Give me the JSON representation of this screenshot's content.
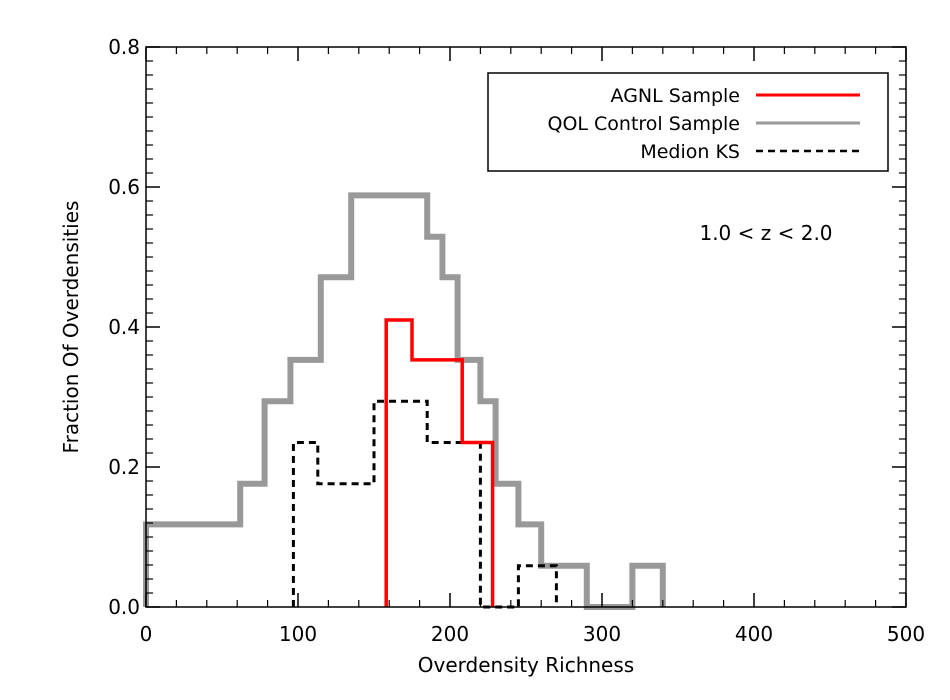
{
  "chart_data": {
    "type": "histogram",
    "title": "",
    "xlabel": "Overdensity Richness",
    "ylabel": "Fraction Of Overdensities",
    "xlim": [
      0,
      500
    ],
    "ylim": [
      0,
      0.8
    ],
    "x_ticks": [
      0,
      100,
      200,
      300,
      400,
      500
    ],
    "x_tick_labels": [
      "0",
      "100",
      "200",
      "300",
      "400",
      "500"
    ],
    "y_ticks": [
      0.0,
      0.2,
      0.4,
      0.6,
      0.8
    ],
    "y_tick_labels": [
      "0.0",
      "0.2",
      "0.4",
      "0.6",
      "0.8"
    ],
    "annotation": "1.0 < z < 2.0",
    "legend_position": "top-right",
    "series": [
      {
        "name": "AGNL Sample",
        "color": "#ff0000",
        "style": "solid",
        "steps": [
          [
            158,
            0.0
          ],
          [
            158,
            0.41
          ],
          [
            175,
            0.41
          ],
          [
            175,
            0.353
          ],
          [
            208,
            0.353
          ],
          [
            208,
            0.235
          ],
          [
            228,
            0.235
          ],
          [
            228,
            0.0
          ]
        ]
      },
      {
        "name": "QOL Control Sample",
        "color": "#999999",
        "style": "solid",
        "steps": [
          [
            0,
            0.0
          ],
          [
            0,
            0.118
          ],
          [
            62,
            0.118
          ],
          [
            62,
            0.176
          ],
          [
            78,
            0.176
          ],
          [
            78,
            0.294
          ],
          [
            95,
            0.294
          ],
          [
            95,
            0.353
          ],
          [
            115,
            0.353
          ],
          [
            115,
            0.471
          ],
          [
            135,
            0.471
          ],
          [
            135,
            0.588
          ],
          [
            185,
            0.588
          ],
          [
            185,
            0.529
          ],
          [
            195,
            0.529
          ],
          [
            195,
            0.471
          ],
          [
            205,
            0.471
          ],
          [
            205,
            0.353
          ],
          [
            220,
            0.353
          ],
          [
            220,
            0.294
          ],
          [
            230,
            0.294
          ],
          [
            230,
            0.176
          ],
          [
            245,
            0.176
          ],
          [
            245,
            0.118
          ],
          [
            260,
            0.118
          ],
          [
            260,
            0.059
          ],
          [
            290,
            0.059
          ],
          [
            290,
            0.0
          ],
          [
            320,
            0.0
          ],
          [
            320,
            0.059
          ],
          [
            340,
            0.059
          ],
          [
            340,
            0.0
          ]
        ]
      },
      {
        "name": "Medion KS",
        "color": "#000000",
        "style": "dashed",
        "steps": [
          [
            97,
            0.0
          ],
          [
            97,
            0.235
          ],
          [
            113,
            0.235
          ],
          [
            113,
            0.176
          ],
          [
            150,
            0.176
          ],
          [
            150,
            0.294
          ],
          [
            185,
            0.294
          ],
          [
            185,
            0.235
          ],
          [
            220,
            0.235
          ],
          [
            220,
            0.0
          ],
          [
            245,
            0.0
          ],
          [
            245,
            0.059
          ],
          [
            270,
            0.059
          ],
          [
            270,
            0.0
          ]
        ]
      }
    ]
  }
}
